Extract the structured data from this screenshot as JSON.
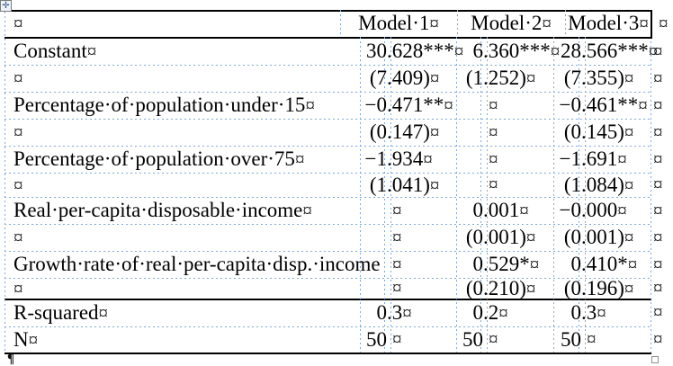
{
  "document": {
    "type": "word-regression-table",
    "formatting_marks": {
      "cell_end": "¤",
      "row_end": "¤",
      "paragraph": "¶",
      "space_dot": "·"
    },
    "colors": {
      "gridline": "#7fa8d9",
      "border": "#000000",
      "text": "#000000",
      "page": "#ffffff"
    },
    "table": {
      "header": {
        "col0": "",
        "models": [
          "Model·1",
          "Model·2",
          "Model·3"
        ]
      },
      "rows": [
        {
          "label": "Constant",
          "values": [
            "30.628***",
            "6.360***",
            "28.566***"
          ]
        },
        {
          "label": "",
          "values": [
            "(7.409)",
            "(1.252)",
            "(7.355)"
          ]
        },
        {
          "label": "Percentage·of·population·under·15",
          "values": [
            "−0.471**",
            "",
            "−0.461**"
          ]
        },
        {
          "label": "",
          "values": [
            "(0.147)",
            "",
            "(0.145)"
          ]
        },
        {
          "label": "Percentage·of·population·over·75",
          "values": [
            "−1.934",
            "",
            "−1.691"
          ]
        },
        {
          "label": "",
          "values": [
            "(1.041)",
            "",
            "(1.084)"
          ]
        },
        {
          "label": "Real·per-capita·disposable·income",
          "values": [
            "",
            "0.001",
            "−0.000"
          ]
        },
        {
          "label": "",
          "values": [
            "",
            "(0.001)",
            "(0.001)"
          ]
        },
        {
          "label": "Growth·rate·of·real·per-capita·disp.·income",
          "values": [
            "",
            "0.529*",
            "0.410*"
          ],
          "label_marker_hidden": true
        },
        {
          "label": "",
          "values": [
            "",
            "(0.210)",
            "(0.196)"
          ]
        },
        {
          "label": "R-squared",
          "values": [
            "0.3",
            "0.2",
            "0.3"
          ]
        },
        {
          "label": "N",
          "values": [
            "50",
            "50",
            "50"
          ]
        }
      ]
    }
  }
}
